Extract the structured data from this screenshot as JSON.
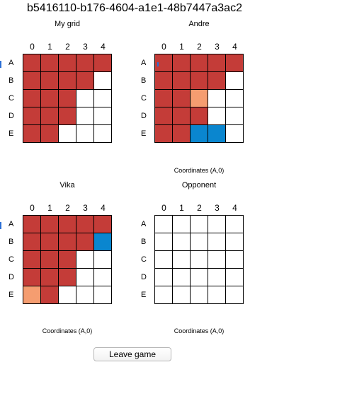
{
  "game_id": "b5416110-b176-4604-a1e1-48b7447a3ac2",
  "columns": [
    "0",
    "1",
    "2",
    "3",
    "4"
  ],
  "rows": [
    "A",
    "B",
    "C",
    "D",
    "E"
  ],
  "boards": [
    {
      "title": "My grid",
      "coordinates_label": "",
      "cells": [
        [
          "ship",
          "ship",
          "ship",
          "ship",
          "ship"
        ],
        [
          "ship",
          "ship",
          "ship",
          "ship",
          "empty"
        ],
        [
          "ship",
          "ship",
          "ship",
          "empty",
          "empty"
        ],
        [
          "ship",
          "ship",
          "ship",
          "empty",
          "empty"
        ],
        [
          "ship",
          "ship",
          "empty",
          "empty",
          "empty"
        ]
      ]
    },
    {
      "title": "Andre",
      "coordinates_label": "Coordinates (A,0)",
      "cells": [
        [
          "ship",
          "ship",
          "ship",
          "ship",
          "ship"
        ],
        [
          "ship",
          "ship",
          "ship",
          "ship",
          "empty"
        ],
        [
          "ship",
          "ship",
          "hit",
          "empty",
          "empty"
        ],
        [
          "ship",
          "ship",
          "ship",
          "empty",
          "empty"
        ],
        [
          "ship",
          "ship",
          "miss",
          "miss",
          "empty"
        ]
      ]
    },
    {
      "title": "Vika",
      "coordinates_label": "Coordinates (A,0)",
      "cells": [
        [
          "ship",
          "ship",
          "ship",
          "ship",
          "ship"
        ],
        [
          "ship",
          "ship",
          "ship",
          "ship",
          "miss"
        ],
        [
          "ship",
          "ship",
          "ship",
          "empty",
          "empty"
        ],
        [
          "ship",
          "ship",
          "ship",
          "empty",
          "empty"
        ],
        [
          "hit",
          "ship",
          "empty",
          "empty",
          "empty"
        ]
      ]
    },
    {
      "title": "Opponent",
      "coordinates_label": "Coordinates (A,0)",
      "cells": [
        [
          "empty",
          "empty",
          "empty",
          "empty",
          "empty"
        ],
        [
          "empty",
          "empty",
          "empty",
          "empty",
          "empty"
        ],
        [
          "empty",
          "empty",
          "empty",
          "empty",
          "empty"
        ],
        [
          "empty",
          "empty",
          "empty",
          "empty",
          "empty"
        ],
        [
          "empty",
          "empty",
          "empty",
          "empty",
          "empty"
        ]
      ]
    }
  ],
  "leave_button_label": "Leave game",
  "colors": {
    "ship": "#c43c38",
    "hit": "#f59d70",
    "miss": "#0a86cf",
    "empty": "#ffffff"
  }
}
